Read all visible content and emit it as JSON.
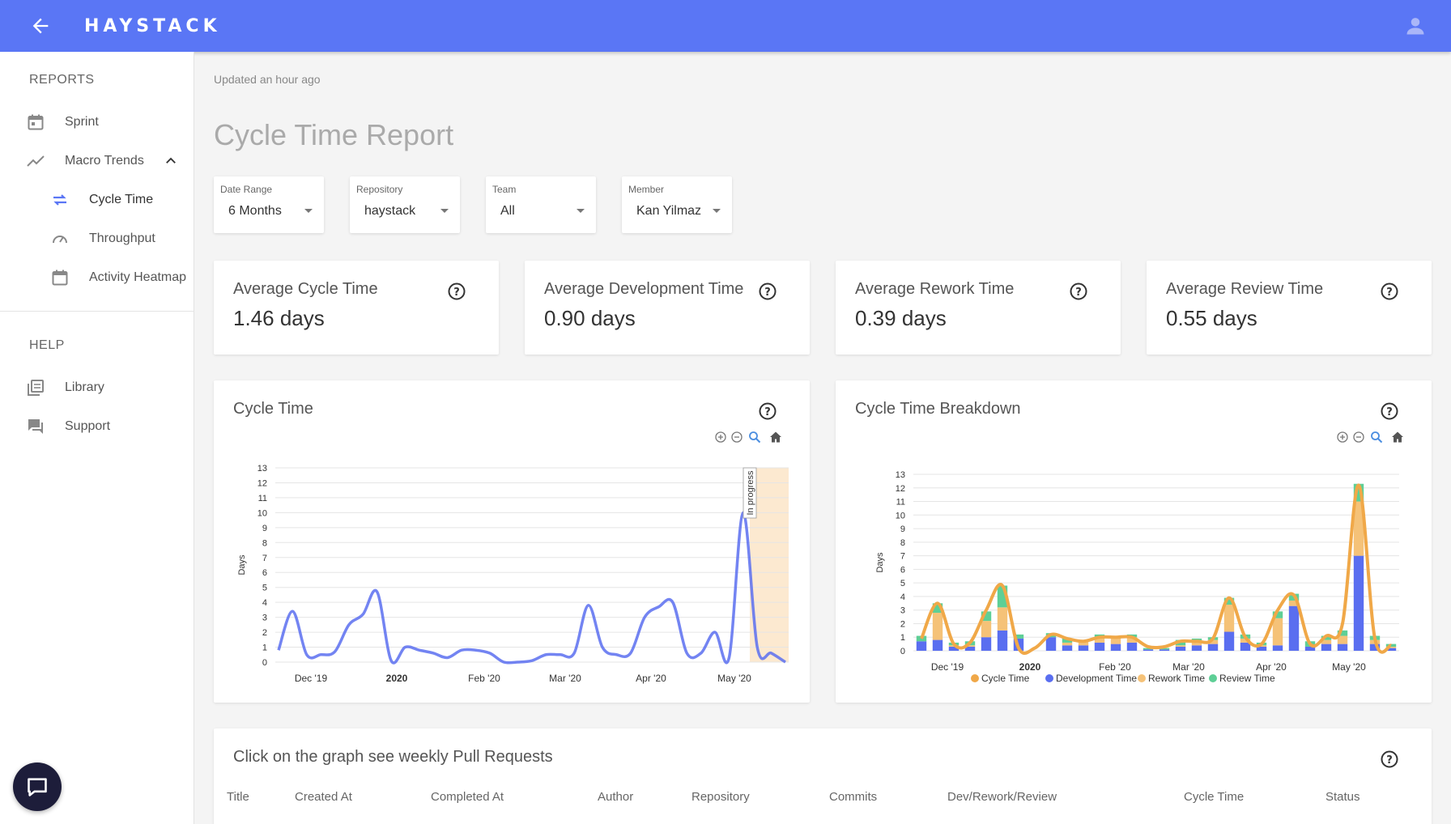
{
  "header": {
    "logo": "HAYSTACK"
  },
  "sidebar": {
    "reports_label": "REPORTS",
    "help_label": "HELP",
    "items": [
      {
        "label": "Sprint",
        "icon": "calendar-icon"
      },
      {
        "label": "Macro Trends",
        "icon": "trend-icon"
      },
      {
        "label": "Cycle Time",
        "icon": "repeat-icon"
      },
      {
        "label": "Throughput",
        "icon": "speedometer-icon"
      },
      {
        "label": "Activity Heatmap",
        "icon": "calendar-icon"
      },
      {
        "label": "Library",
        "icon": "library-icon"
      },
      {
        "label": "Support",
        "icon": "chat-icon"
      }
    ]
  },
  "main": {
    "updated": "Updated an hour ago",
    "title": "Cycle Time Report",
    "filters": [
      {
        "label": "Date Range",
        "value": "6 Months"
      },
      {
        "label": "Repository",
        "value": "haystack"
      },
      {
        "label": "Team",
        "value": "All"
      },
      {
        "label": "Member",
        "value": "Kan Yilmaz"
      }
    ],
    "stats": [
      {
        "title": "Average Cycle Time",
        "value": "1.46 days"
      },
      {
        "title": "Average Development Time",
        "value": "0.90 days"
      },
      {
        "title": "Average Rework Time",
        "value": "0.39 days"
      },
      {
        "title": "Average Review Time",
        "value": "0.55 days"
      }
    ],
    "table": {
      "title": "Click on the graph see weekly Pull Requests",
      "columns": [
        "Title",
        "Created At",
        "Completed At",
        "Author",
        "Repository",
        "Commits",
        "Dev/Rework/Review",
        "Cycle Time",
        "Status"
      ]
    }
  },
  "colors": {
    "accent": "#5a76f5",
    "cycle": "#f0a848",
    "dev": "#5a6ef0",
    "rework": "#f5c278",
    "review": "#5ecf96"
  },
  "chart_data": [
    {
      "type": "line",
      "title": "Cycle Time",
      "ylabel": "Days",
      "ylim": [
        0,
        13
      ],
      "yticks": [
        0,
        1,
        2,
        3,
        4,
        5,
        6,
        7,
        8,
        9,
        10,
        11,
        12,
        13
      ],
      "xticks": [
        "Dec '19",
        "2020",
        "Feb '20",
        "Mar '20",
        "Apr '20",
        "May '20"
      ],
      "annotation": "In progress",
      "series": [
        {
          "values": [
            0.8,
            3.4,
            0.5,
            0.5,
            0.7,
            2.5,
            3.2,
            4.7,
            0.1,
            1.0,
            0.8,
            0.6,
            0.3,
            0.8,
            0.8,
            0.6,
            0.0,
            0.0,
            0.1,
            0.5,
            0.5,
            0.6,
            3.8,
            1.0,
            0.5,
            0.6,
            3.0,
            3.7,
            4.0,
            0.6,
            0.6,
            2.0,
            0.3,
            10.0,
            1.0,
            0.6,
            0.0
          ]
        }
      ]
    },
    {
      "type": "bar",
      "title": "Cycle Time Breakdown",
      "ylabel": "Days",
      "ylim": [
        0,
        13
      ],
      "yticks": [
        0,
        1,
        2,
        3,
        4,
        5,
        6,
        7,
        8,
        9,
        10,
        11,
        12,
        13
      ],
      "xticks": [
        "Dec '19",
        "2020",
        "Feb '20",
        "Mar '20",
        "Apr '20",
        "May '20"
      ],
      "legend": [
        "Cycle Time",
        "Development Time",
        "Rework Time",
        "Review Time"
      ],
      "dev": [
        0.7,
        0.8,
        0.3,
        0.3,
        1.0,
        1.5,
        0.9,
        0.0,
        1.0,
        0.4,
        0.4,
        0.6,
        0.5,
        0.6,
        0.1,
        0.1,
        0.3,
        0.4,
        0.5,
        1.4,
        0.6,
        0.3,
        0.4,
        3.3,
        0.3,
        0.5,
        0.5,
        7.0,
        0.5,
        0.2
      ],
      "rework": [
        0.0,
        2.0,
        0.1,
        0.1,
        1.2,
        1.7,
        0.0,
        0.0,
        0.0,
        0.2,
        0.3,
        0.3,
        0.4,
        0.4,
        0.0,
        0.0,
        0.1,
        0.2,
        0.3,
        2.0,
        0.3,
        0.1,
        2.0,
        0.4,
        0.0,
        0.3,
        0.6,
        4.0,
        0.3,
        0.1
      ],
      "review": [
        0.4,
        0.7,
        0.2,
        0.3,
        0.7,
        1.6,
        0.3,
        0.0,
        0.3,
        0.3,
        0.1,
        0.3,
        0.2,
        0.2,
        0.1,
        0.1,
        0.4,
        0.3,
        0.2,
        0.5,
        0.3,
        0.2,
        0.5,
        0.5,
        0.4,
        0.3,
        0.4,
        1.3,
        0.3,
        0.2
      ],
      "cycle": [
        0.9,
        3.5,
        0.5,
        0.6,
        3.0,
        4.8,
        0.2,
        0.2,
        1.2,
        0.9,
        0.7,
        1.0,
        1.0,
        1.0,
        0.3,
        0.3,
        0.7,
        0.7,
        0.9,
        3.9,
        1.0,
        0.5,
        3.0,
        4.1,
        0.5,
        1.1,
        2.0,
        12.2,
        0.9,
        0.4
      ]
    }
  ]
}
